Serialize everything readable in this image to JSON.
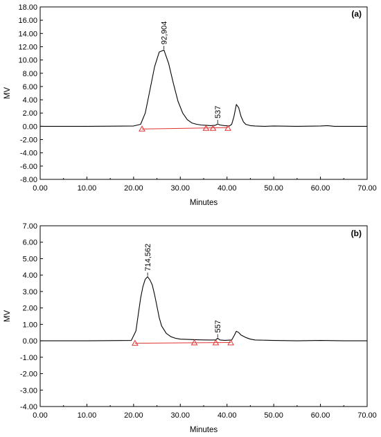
{
  "chart_data": [
    {
      "type": "line",
      "panel_label": "(a)",
      "xlabel": "Minutes",
      "ylabel": "MV",
      "xlim": [
        0,
        70
      ],
      "ylim": [
        -8,
        18
      ],
      "x_ticks": [
        0,
        10,
        20,
        30,
        40,
        50,
        60,
        70
      ],
      "x_tick_labels": [
        "0.00",
        "10.00",
        "20.00",
        "30.00",
        "40.00",
        "50.00",
        "60.00",
        "70.00"
      ],
      "y_ticks": [
        18,
        16,
        14,
        12,
        10,
        8,
        6,
        4,
        2,
        0,
        -2,
        -4,
        -6,
        -8
      ],
      "y_tick_labels": [
        "18.00",
        "16.00",
        "14.00",
        "12.00",
        "10.00",
        "8.00",
        "6.00",
        "4.00",
        "2.00",
        "0.00",
        "-2.00",
        "-4.00",
        "-6.00",
        "-8.00"
      ],
      "grid": false,
      "signal": {
        "x": [
          0,
          10,
          20,
          21.5,
          22.5,
          23.5,
          24.5,
          25.5,
          26.5,
          27.5,
          28.5,
          29.5,
          30.5,
          31.5,
          32.5,
          33.5,
          34.5,
          35.5,
          36.5,
          37.5,
          38.0,
          38.5,
          39.5,
          40.5,
          41.0,
          41.5,
          42.0,
          42.5,
          43.0,
          43.5,
          44.0,
          45.0,
          46.0,
          48.0,
          50.0,
          55.0,
          60.0,
          61.5,
          63.0,
          70.0
        ],
        "y": [
          0,
          0,
          0.05,
          0.3,
          2.0,
          5.5,
          9.0,
          11.2,
          11.5,
          9.5,
          6.5,
          3.8,
          2.0,
          1.0,
          0.5,
          0.3,
          0.2,
          0.15,
          0.1,
          0.15,
          0.35,
          0.2,
          0.1,
          0.05,
          0.3,
          1.5,
          3.3,
          2.8,
          1.5,
          0.7,
          0.3,
          0.1,
          0.05,
          0.0,
          0.05,
          0.0,
          0.05,
          0.1,
          0.0,
          0.0
        ]
      },
      "baseline": {
        "x": [
          21.8,
          40.2
        ],
        "y": [
          -0.4,
          -0.2
        ]
      },
      "markers": [
        {
          "x": 21.8,
          "y": -0.4
        },
        {
          "x": 35.5,
          "y": -0.3
        },
        {
          "x": 37.0,
          "y": -0.3
        },
        {
          "x": 40.2,
          "y": -0.3
        }
      ],
      "peak_labels": [
        {
          "text": "92,904",
          "x": 26.5,
          "y": 11.5
        },
        {
          "text": "537",
          "x": 38.0,
          "y": 0.35
        }
      ]
    },
    {
      "type": "line",
      "panel_label": "(b)",
      "xlabel": "Minutes",
      "ylabel": "MV",
      "xlim": [
        0,
        70
      ],
      "ylim": [
        -4,
        7
      ],
      "x_ticks": [
        0,
        10,
        20,
        30,
        40,
        50,
        60,
        70
      ],
      "x_tick_labels": [
        "0.00",
        "10.00",
        "20.00",
        "30.00",
        "40.00",
        "50.00",
        "60.00",
        "70.00"
      ],
      "y_ticks": [
        7,
        6,
        5,
        4,
        3,
        2,
        1,
        0,
        -1,
        -2,
        -3,
        -4
      ],
      "y_tick_labels": [
        "7.00",
        "6.00",
        "5.00",
        "4.00",
        "3.00",
        "2.00",
        "1.00",
        "0.00",
        "-1.00",
        "-2.00",
        "-3.00",
        "-4.00"
      ],
      "grid": false,
      "signal": {
        "x": [
          0,
          10,
          19.5,
          20.5,
          21.0,
          21.5,
          22.0,
          22.5,
          23.0,
          23.5,
          24.0,
          24.5,
          25.0,
          25.5,
          26.0,
          27.0,
          28.0,
          29.0,
          30.0,
          32.0,
          34.0,
          36.0,
          37.5,
          38.0,
          38.5,
          39.5,
          41.0,
          41.5,
          42.0,
          42.5,
          43.0,
          44.0,
          45.0,
          46.0,
          50.0,
          55.0,
          60.0,
          65.0,
          70.0
        ],
        "y": [
          0,
          0,
          0.02,
          0.6,
          1.6,
          2.6,
          3.3,
          3.75,
          3.9,
          3.7,
          3.4,
          2.8,
          2.1,
          1.4,
          0.9,
          0.45,
          0.25,
          0.15,
          0.1,
          0.08,
          0.06,
          0.05,
          0.05,
          0.15,
          0.05,
          0.03,
          0.05,
          0.3,
          0.58,
          0.5,
          0.35,
          0.2,
          0.1,
          0.05,
          0.02,
          0.0,
          0.02,
          0.0,
          0.0
        ]
      },
      "baseline": {
        "x": [
          20.3,
          40.8
        ],
        "y": [
          -0.15,
          -0.1
        ]
      },
      "markers": [
        {
          "x": 20.3,
          "y": -0.15
        },
        {
          "x": 33.0,
          "y": -0.12
        },
        {
          "x": 37.6,
          "y": -0.12
        },
        {
          "x": 40.8,
          "y": -0.12
        }
      ],
      "peak_labels": [
        {
          "text": "714,562",
          "x": 23.0,
          "y": 3.9
        },
        {
          "text": "557",
          "x": 38.0,
          "y": 0.15
        }
      ]
    }
  ]
}
